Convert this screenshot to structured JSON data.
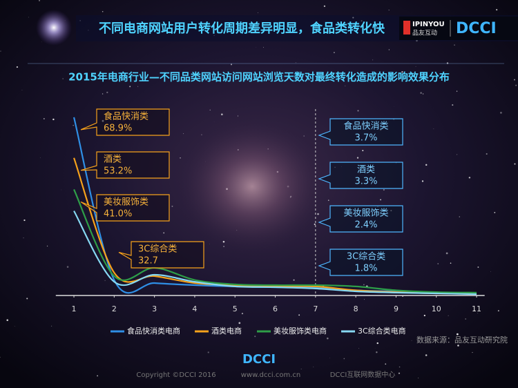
{
  "header": {
    "title": "不同电商网站用户转化周期差异明显，食品类转化快",
    "logo_ipinyou": "IPINYOU",
    "logo_cn": "品友互动",
    "logo_dcci": "DCCI"
  },
  "chart_data": {
    "type": "line",
    "title": "2015年电商行业—不同品类网站访问网站浏览天数对最终转化造成的影响效果分布",
    "x": [
      1,
      2,
      3,
      4,
      5,
      6,
      7,
      8,
      9,
      10,
      11
    ],
    "xlim": [
      0.55,
      11.2
    ],
    "xticks": [
      1,
      2,
      3,
      4,
      5,
      6,
      7,
      8,
      9,
      10,
      11
    ],
    "ylim": [
      0,
      75
    ],
    "series": [
      {
        "name": "食品快消类电商",
        "color": "#2f8fe6",
        "values": [
          68.9,
          6,
          4.8,
          4,
          3.5,
          3.2,
          3.2,
          2,
          1.6,
          1.1,
          0.8
        ]
      },
      {
        "name": "酒类电商",
        "color": "#f7a21b",
        "values": [
          53.2,
          8.8,
          7.5,
          4.8,
          4,
          3.7,
          3.5,
          2,
          1.3,
          0.8,
          0.8
        ]
      },
      {
        "name": "美妆服饰类电商",
        "color": "#2e9e48",
        "values": [
          41.0,
          7.5,
          10.7,
          6,
          4.3,
          4,
          4,
          3.5,
          2,
          1.3,
          1.1
        ]
      },
      {
        "name": "3C综合类电商",
        "color": "#86d8f2",
        "values": [
          32.7,
          5.3,
          8,
          5.3,
          3.5,
          3.2,
          2.7,
          1.6,
          1.1,
          0.8,
          0.5
        ]
      }
    ],
    "divider_x": 7,
    "left_callouts": [
      {
        "name": "食品快消类",
        "value": 68.9,
        "label": "68.9%"
      },
      {
        "name": "酒类",
        "value": 53.2,
        "label": "53.2%"
      },
      {
        "name": "美妆服饰类",
        "value": 41.0,
        "label": "41.0%"
      },
      {
        "name": "3C综合类",
        "value": 32.7,
        "label": "32.7"
      }
    ],
    "right_callouts": [
      {
        "name": "食品快消类",
        "label": "3.7%"
      },
      {
        "name": "酒类",
        "label": "3.3%"
      },
      {
        "name": "美妆服饰类",
        "label": "2.4%"
      },
      {
        "name": "3C综合类",
        "label": "1.8%"
      }
    ],
    "source": "数据来源：品友互动研究院"
  },
  "footer": {
    "logo": "DCCI",
    "copyright": "Copyright ©DCCI 2016",
    "url": "www.dcci.com.cn",
    "org": "DCCI互联网数据中心"
  }
}
